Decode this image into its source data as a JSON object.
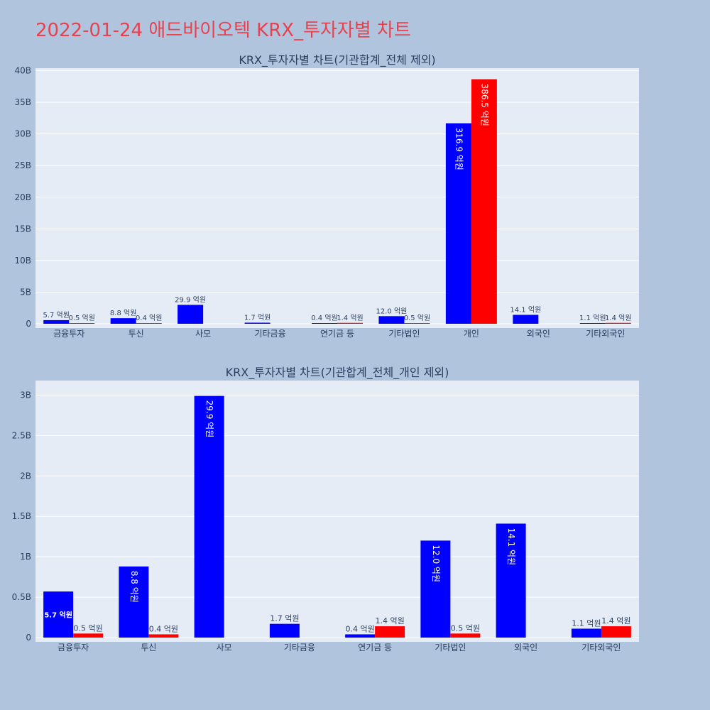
{
  "page_title": "2022-01-24 애드바이오텍 KRX_투자자별 차트",
  "colors": {
    "buy": "#0000ff",
    "sell": "#ff0000",
    "plot_bg": "#e5ecf6",
    "page_bg": "#b0c4de",
    "title": "#e8424e"
  },
  "chart_data": [
    {
      "type": "bar",
      "title": "KRX_투자자별 차트(기관합계_전체 제외)",
      "categories": [
        "금융투자",
        "투신",
        "사모",
        "기타금융",
        "연기금 등",
        "기타법인",
        "개인",
        "외국인",
        "기타외국인"
      ],
      "ylim": [
        0,
        40.4
      ],
      "yticks": [
        0,
        5,
        10,
        15,
        20,
        25,
        30,
        35,
        40
      ],
      "ytick_labels": [
        "0",
        "5B",
        "10B",
        "15B",
        "20B",
        "25B",
        "30B",
        "35B",
        "40B"
      ],
      "grid": true,
      "series": [
        {
          "values": [
            0.57,
            0.88,
            2.99,
            0.17,
            0.04,
            1.2,
            31.69,
            1.41,
            0.11
          ],
          "labels": [
            "5.7 억원",
            "8.8 억원",
            "29.9 억원",
            "1.7 억원",
            "0.4 억원",
            "12.0 억원",
            "316.9 억원",
            "14.1 억원",
            "1.1 억원"
          ]
        },
        {
          "values": [
            0.05,
            0.04,
            null,
            null,
            0.14,
            0.05,
            38.65,
            null,
            0.14
          ],
          "labels": [
            "0.5 억원",
            "0.4 억원",
            "",
            "",
            "1.4 억원",
            "0.5 억원",
            "386.5 억원",
            "",
            "1.4 억원"
          ]
        }
      ]
    },
    {
      "type": "bar",
      "title": "KRX_투자자별 차트(기관합계_전체_개인 제외)",
      "categories": [
        "금융투자",
        "투신",
        "사모",
        "기타금융",
        "연기금 등",
        "기타법인",
        "외국인",
        "기타외국인"
      ],
      "ylim": [
        0,
        3.18
      ],
      "yticks": [
        0,
        0.5,
        1,
        1.5,
        2,
        2.5,
        3
      ],
      "ytick_labels": [
        "0",
        "0.5B",
        "1B",
        "1.5B",
        "2B",
        "2.5B",
        "3B"
      ],
      "grid": true,
      "series": [
        {
          "values": [
            0.57,
            0.88,
            2.99,
            0.17,
            0.04,
            1.2,
            1.41,
            0.11
          ],
          "labels": [
            "5.7 억원",
            "8.8 억원",
            "29.9 억원",
            "1.7 억원",
            "0.4 억원",
            "12.0 억원",
            "14.1 억원",
            "1.1 억원"
          ]
        },
        {
          "values": [
            0.05,
            0.04,
            null,
            null,
            0.14,
            0.05,
            null,
            0.14
          ],
          "labels": [
            "0.5 억원",
            "0.4 억원",
            "",
            "",
            "1.4 억원",
            "0.5 억원",
            "",
            "1.4 억원"
          ]
        }
      ]
    }
  ]
}
